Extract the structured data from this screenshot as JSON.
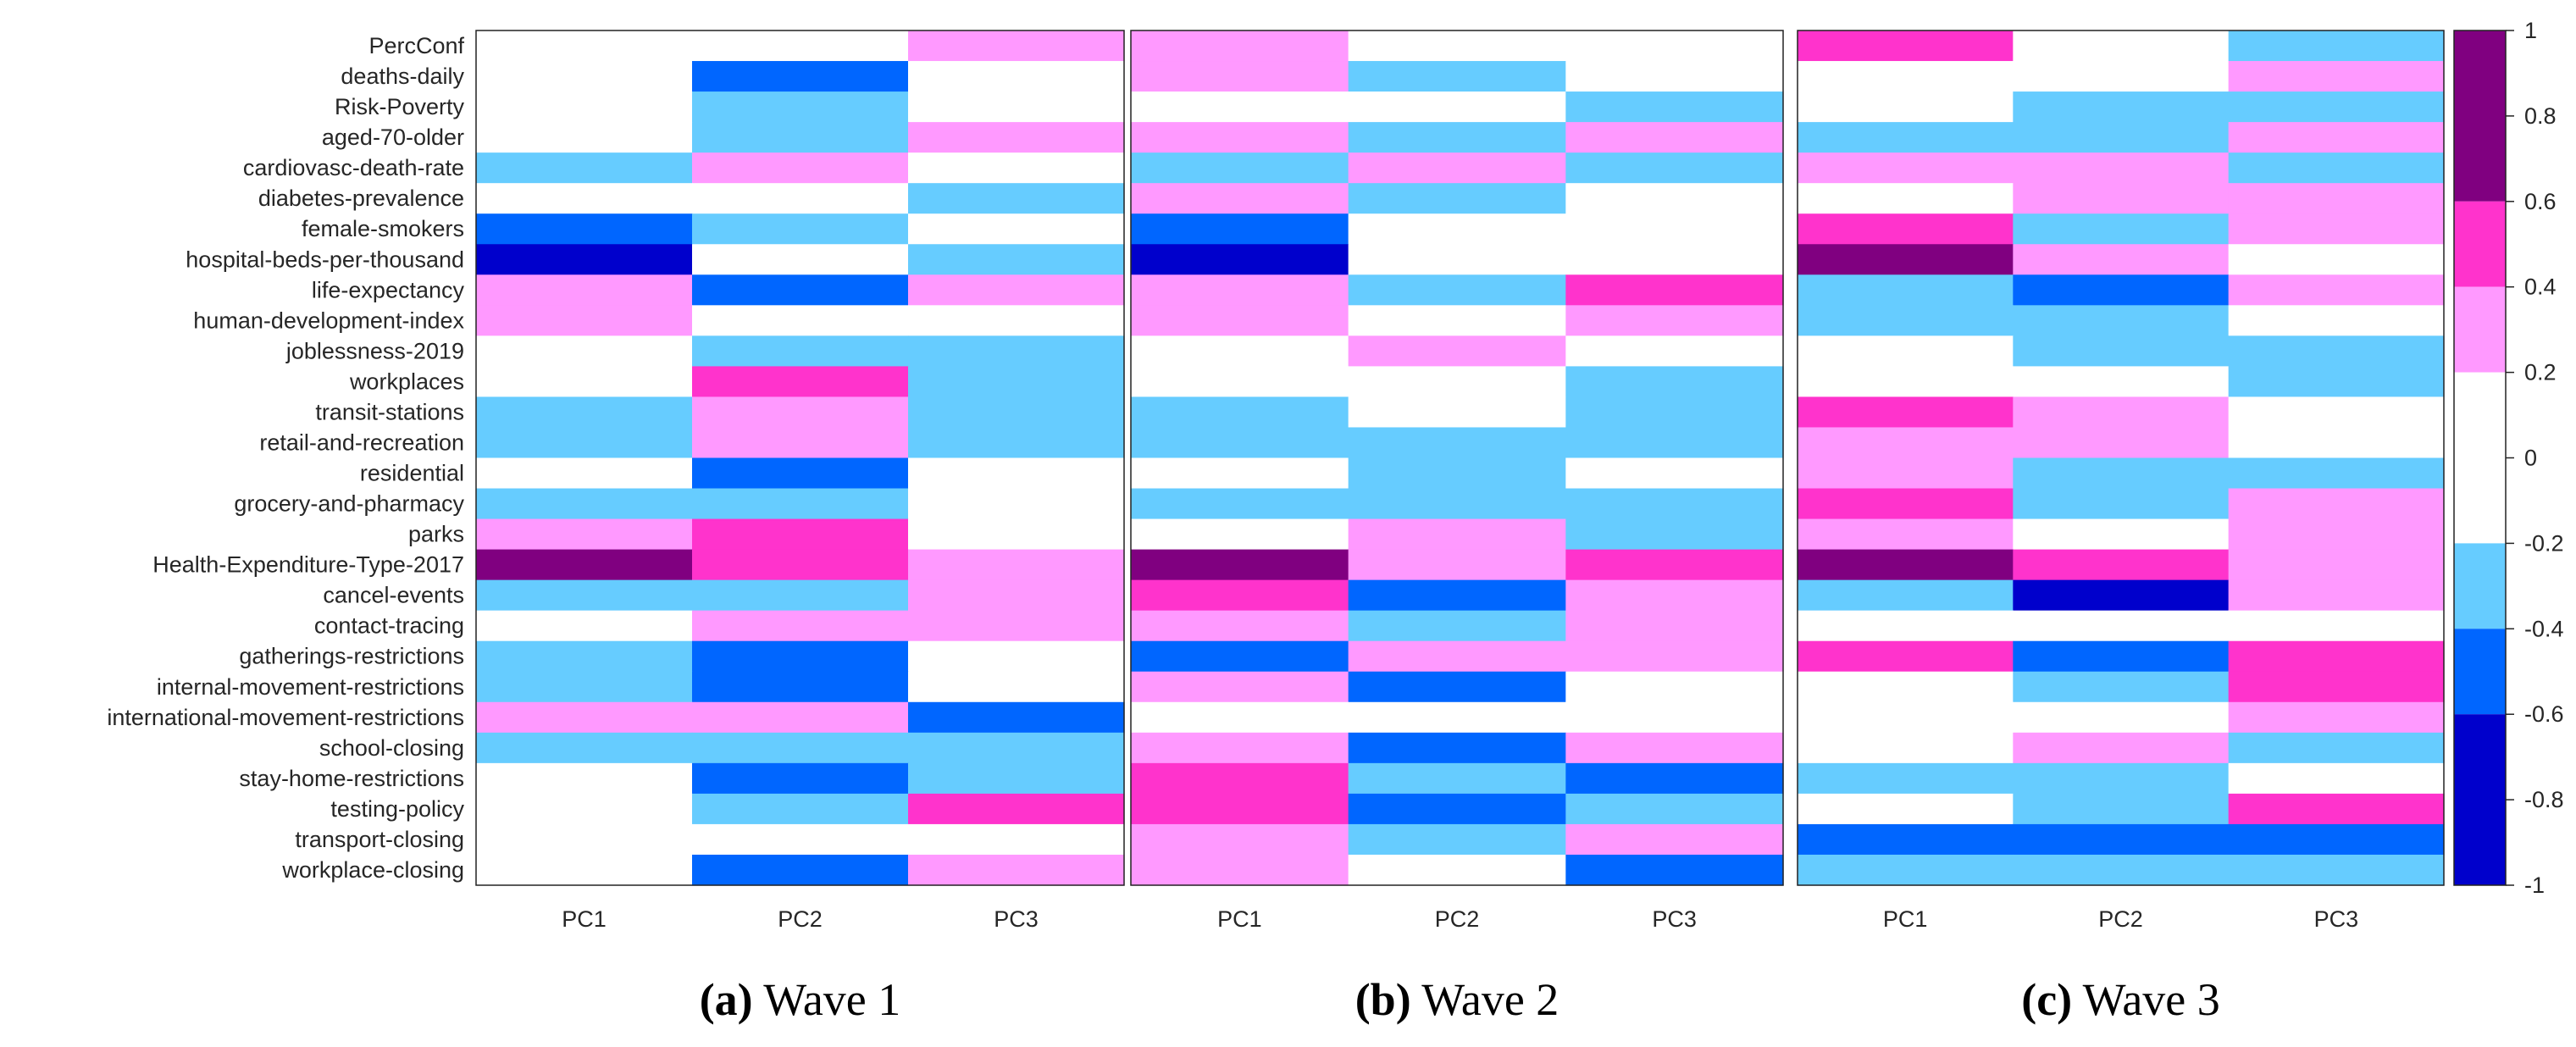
{
  "chart_data": {
    "type": "heatmap",
    "rows": [
      "PercConf",
      "deaths-daily",
      "Risk-Poverty",
      "aged-70-older",
      "cardiovasc-death-rate",
      "diabetes-prevalence",
      "female-smokers",
      "hospital-beds-per-thousand",
      "life-expectancy",
      "human-development-index",
      "joblessness-2019",
      "workplaces",
      "transit-stations",
      "retail-and-recreation",
      "residential",
      "grocery-and-pharmacy",
      "parks",
      "Health-Expenditure-Type-2017",
      "cancel-events",
      "contact-tracing",
      "gatherings-restrictions",
      "internal-movement-restrictions",
      "international-movement-restrictions",
      "school-closing",
      "stay-home-restrictions",
      "testing-policy",
      "transport-closing",
      "workplace-closing"
    ],
    "columns": [
      "PC1",
      "PC2",
      "PC3"
    ],
    "colorbar": {
      "range": [
        -1,
        1
      ],
      "ticks": [
        "1",
        "0.8",
        "0.6",
        "0.4",
        "0.2",
        "0",
        "-0.2",
        "-0.4",
        "-0.6",
        "-0.8",
        "-1"
      ],
      "bands": [
        {
          "from": 0.6,
          "to": 1.0,
          "color": "#800080"
        },
        {
          "from": 0.4,
          "to": 0.6,
          "color": "#ff33cc"
        },
        {
          "from": 0.2,
          "to": 0.4,
          "color": "#ff99ff"
        },
        {
          "from": -0.2,
          "to": 0.2,
          "color": "#ffffff"
        },
        {
          "from": -0.4,
          "to": -0.2,
          "color": "#66ccff"
        },
        {
          "from": -0.6,
          "to": -0.4,
          "color": "#0066ff"
        },
        {
          "from": -1.0,
          "to": -0.6,
          "color": "#0000cc"
        }
      ]
    },
    "panels": [
      {
        "letter": "(a)",
        "title": "Wave 1",
        "values": [
          [
            0,
            0,
            0.3
          ],
          [
            0,
            -0.5,
            0
          ],
          [
            0,
            -0.3,
            0
          ],
          [
            0,
            -0.3,
            0.3
          ],
          [
            -0.3,
            0.3,
            0
          ],
          [
            0,
            0,
            -0.3
          ],
          [
            -0.5,
            -0.3,
            0
          ],
          [
            -0.7,
            0,
            -0.3
          ],
          [
            0.3,
            -0.5,
            0.3
          ],
          [
            0.3,
            0,
            0
          ],
          [
            0,
            -0.3,
            -0.3
          ],
          [
            0,
            0.5,
            -0.3
          ],
          [
            -0.3,
            0.3,
            -0.3
          ],
          [
            -0.3,
            0.3,
            -0.3
          ],
          [
            0,
            -0.5,
            0
          ],
          [
            -0.3,
            -0.3,
            0
          ],
          [
            0.3,
            0.5,
            0
          ],
          [
            0.7,
            0.5,
            0.3
          ],
          [
            -0.3,
            -0.3,
            0.3
          ],
          [
            0,
            0.3,
            0.3
          ],
          [
            -0.3,
            -0.5,
            0
          ],
          [
            -0.3,
            -0.5,
            0
          ],
          [
            0.3,
            0.3,
            -0.5
          ],
          [
            -0.3,
            -0.3,
            -0.3
          ],
          [
            0,
            -0.5,
            -0.3
          ],
          [
            0,
            -0.3,
            0.5
          ],
          [
            0,
            0,
            0
          ],
          [
            0,
            -0.5,
            0.3
          ]
        ]
      },
      {
        "letter": "(b)",
        "title": "Wave 2",
        "values": [
          [
            0.3,
            0,
            0
          ],
          [
            0.3,
            -0.3,
            0
          ],
          [
            0,
            0,
            -0.3
          ],
          [
            0.3,
            -0.3,
            0.3
          ],
          [
            -0.3,
            0.3,
            -0.3
          ],
          [
            0.3,
            -0.3,
            0
          ],
          [
            -0.5,
            0,
            0
          ],
          [
            -0.7,
            0,
            0
          ],
          [
            0.3,
            -0.3,
            0.5
          ],
          [
            0.3,
            0,
            0.3
          ],
          [
            0,
            0.3,
            0
          ],
          [
            0,
            0,
            -0.3
          ],
          [
            -0.3,
            0,
            -0.3
          ],
          [
            -0.3,
            -0.3,
            -0.3
          ],
          [
            0,
            -0.3,
            0
          ],
          [
            -0.3,
            -0.3,
            -0.3
          ],
          [
            0,
            0.3,
            -0.3
          ],
          [
            0.7,
            0.3,
            0.5
          ],
          [
            0.5,
            -0.5,
            0.3
          ],
          [
            0.3,
            -0.3,
            0.3
          ],
          [
            -0.5,
            0.3,
            0.3
          ],
          [
            0.3,
            -0.5,
            0
          ],
          [
            0,
            0,
            0
          ],
          [
            0.3,
            -0.5,
            0.3
          ],
          [
            0.5,
            -0.3,
            -0.5
          ],
          [
            0.5,
            -0.5,
            -0.3
          ],
          [
            0.3,
            -0.3,
            0.3
          ],
          [
            0.3,
            0,
            -0.5
          ]
        ]
      },
      {
        "letter": "(c)",
        "title": "Wave 3",
        "values": [
          [
            0.5,
            0,
            -0.3
          ],
          [
            0,
            0,
            0.3
          ],
          [
            0,
            -0.3,
            -0.3
          ],
          [
            -0.3,
            -0.3,
            0.3
          ],
          [
            0.3,
            0.3,
            -0.3
          ],
          [
            0,
            0.3,
            0.3
          ],
          [
            0.5,
            -0.3,
            0.3
          ],
          [
            0.7,
            0.3,
            0
          ],
          [
            -0.3,
            -0.5,
            0.3
          ],
          [
            -0.3,
            -0.3,
            0
          ],
          [
            0,
            -0.3,
            -0.3
          ],
          [
            0,
            0,
            -0.3
          ],
          [
            0.5,
            0.3,
            0
          ],
          [
            0.3,
            0.3,
            0
          ],
          [
            0.3,
            -0.3,
            -0.3
          ],
          [
            0.5,
            -0.3,
            0.3
          ],
          [
            0.3,
            0,
            0.3
          ],
          [
            0.7,
            0.5,
            0.3
          ],
          [
            -0.3,
            -0.7,
            0.3
          ],
          [
            0,
            0,
            0
          ],
          [
            0.5,
            -0.5,
            0.5
          ],
          [
            0,
            -0.3,
            0.5
          ],
          [
            0,
            0,
            0.3
          ],
          [
            0,
            0.3,
            -0.3
          ],
          [
            -0.3,
            -0.3,
            0
          ],
          [
            0,
            -0.3,
            0.5
          ],
          [
            -0.5,
            -0.5,
            -0.5
          ],
          [
            -0.3,
            -0.3,
            -0.3
          ]
        ]
      }
    ]
  }
}
